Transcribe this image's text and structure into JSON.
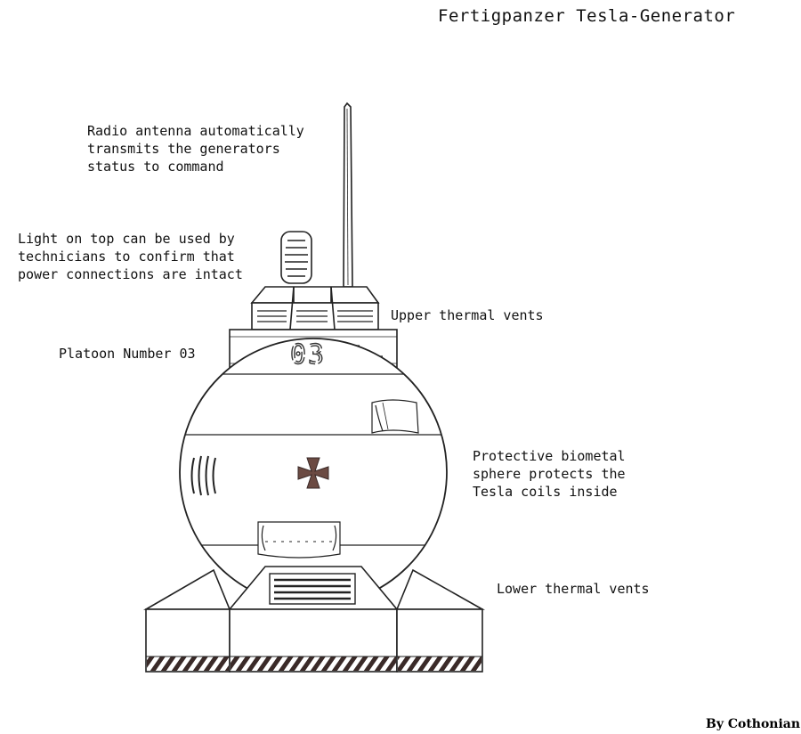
{
  "title": "Fertigpanzer Tesla-Generator",
  "credit": "By Cothonian",
  "platoon_number": "03",
  "annotations": {
    "antenna": [
      "Radio antenna automatically",
      "transmits the generators",
      "status to command"
    ],
    "light": [
      "Light on top can be used by",
      "technicians to confirm that",
      "power connections are intact"
    ],
    "upper_vents": "Upper thermal vents",
    "platoon": "Platoon Number 03",
    "sphere": [
      "Protective biometal",
      "sphere protects the",
      "Tesla coils inside"
    ],
    "lower_vents": "Lower thermal vents"
  },
  "colors": {
    "ink": "#111111",
    "emblem": "#6b4a42",
    "hazard": "#3a2a28"
  }
}
